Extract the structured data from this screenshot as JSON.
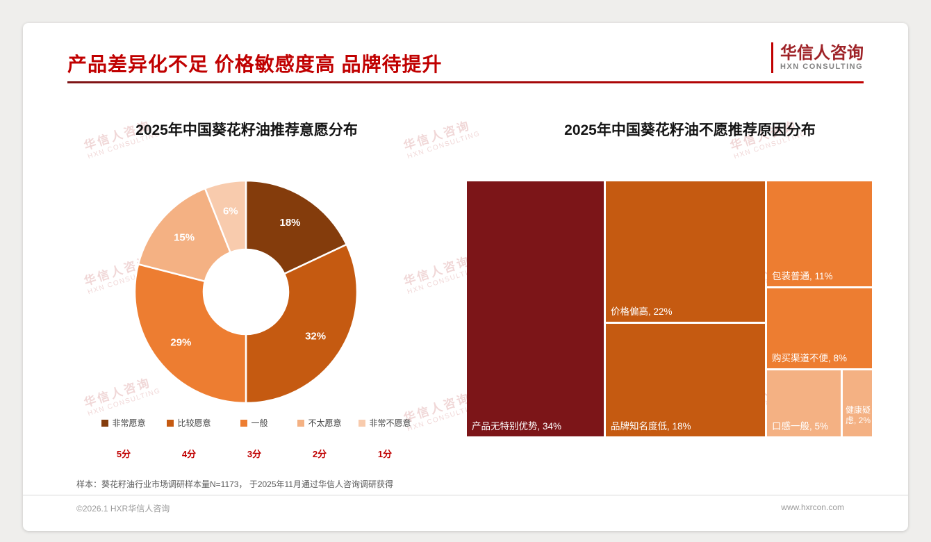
{
  "page": {
    "title": "产品差异化不足 价格敏感度高 品牌待提升",
    "logo": {
      "name": "华信人咨询",
      "sub": "HXN CONSULTING"
    },
    "watermark": {
      "line1": "华信人咨询",
      "line2": "HXN CONSULTING"
    },
    "note": "样本：葵花籽油行业市场调研样本量N=1173， 于2025年11月通过华信人咨询调研获得",
    "footer": {
      "copyright": "©2026.1 HXR华信人咨询",
      "website": "www.hxrcon.com"
    }
  },
  "chart_data": [
    {
      "type": "pie",
      "subtype": "donut",
      "title": "2025年中国葵花籽油推荐意愿分布",
      "categories": [
        "非常愿意",
        "比较愿意",
        "一般",
        "不太愿意",
        "非常不愿意"
      ],
      "values": [
        18,
        32,
        29,
        15,
        6
      ],
      "colors": [
        "#843C0C",
        "#C55A11",
        "#ED7D31",
        "#F4B183",
        "#F8CBAD"
      ],
      "scores": [
        "5分",
        "4分",
        "3分",
        "2分",
        "1分"
      ],
      "label_format": "percent",
      "start_angle": 0,
      "direction": "clockwise",
      "legend_position": "bottom"
    },
    {
      "type": "treemap",
      "title": "2025年中国葵花籽油不愿推荐原因分布",
      "items": [
        {
          "label": "产品无特别优势",
          "value": 34,
          "color": "#7C1518"
        },
        {
          "label": "价格偏高",
          "value": 22,
          "color": "#C55A11"
        },
        {
          "label": "品牌知名度低",
          "value": 18,
          "color": "#C55A11"
        },
        {
          "label": "包装普通",
          "value": 11,
          "color": "#ED7D31"
        },
        {
          "label": "购买渠道不便",
          "value": 8,
          "color": "#ED7D31"
        },
        {
          "label": "口感一般",
          "value": 5,
          "color": "#F4B183"
        },
        {
          "label": "健康疑虑",
          "value": 2,
          "color": "#F4B183"
        }
      ]
    }
  ]
}
